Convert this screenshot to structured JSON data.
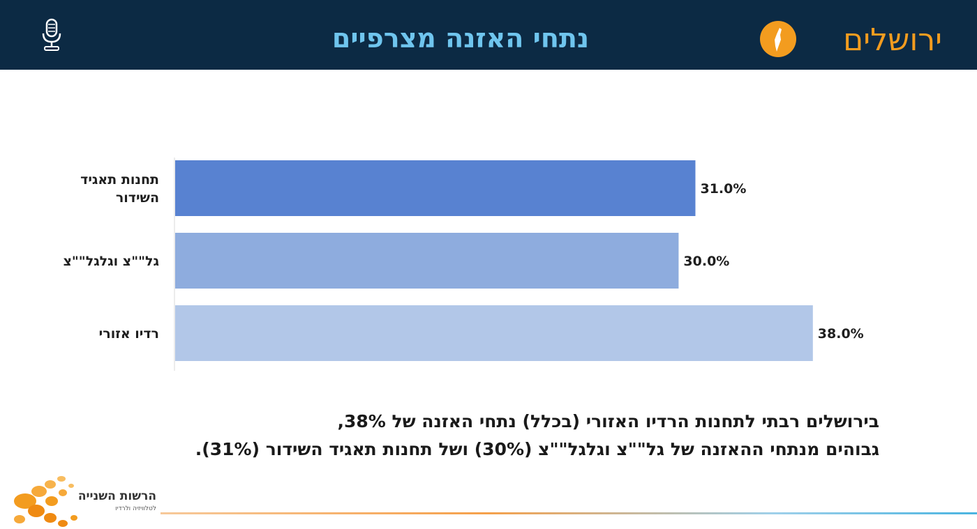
{
  "header": {
    "title": "נתחי האזנה מצרפיים",
    "region": "ירושלים",
    "accent_color": "#f39c1f",
    "title_color": "#6fc5ee",
    "background_color": "#0c2a44",
    "left_icon": "microphone-icon",
    "badge_icon": "israel-map-icon"
  },
  "chart_data": {
    "type": "bar",
    "orientation": "horizontal",
    "categories": [
      "תחנות תאגיד השידור",
      "גל\"\"צ וגלגל\"\"צ",
      "רדיו אזורי"
    ],
    "values": [
      31.0,
      30.0,
      38.0
    ],
    "value_labels": [
      "31.0%",
      "30.0%",
      "38.0%"
    ],
    "colors": [
      "#5882d1",
      "#8eacde",
      "#b2c7e8"
    ],
    "xlim": [
      0,
      42
    ],
    "title": "",
    "xlabel": "",
    "ylabel": "",
    "grid": false,
    "legend": "none"
  },
  "summary": {
    "line1": "בירושלים רבתי לתחנות הרדיו האזורי (בכלל) נתחי האזנה של 38%,",
    "line2": "גבוהים מנתחי ההאזנה של גל\"\"צ וגלגל\"\"צ (30%) ושל תחנות תאגיד השידור (31%)."
  },
  "footer": {
    "logo_text": "הרשות השנייה",
    "logo_subtext": "לטלוויזיה ולרדיו",
    "logo_icon": "orange-dots-logo-icon"
  }
}
